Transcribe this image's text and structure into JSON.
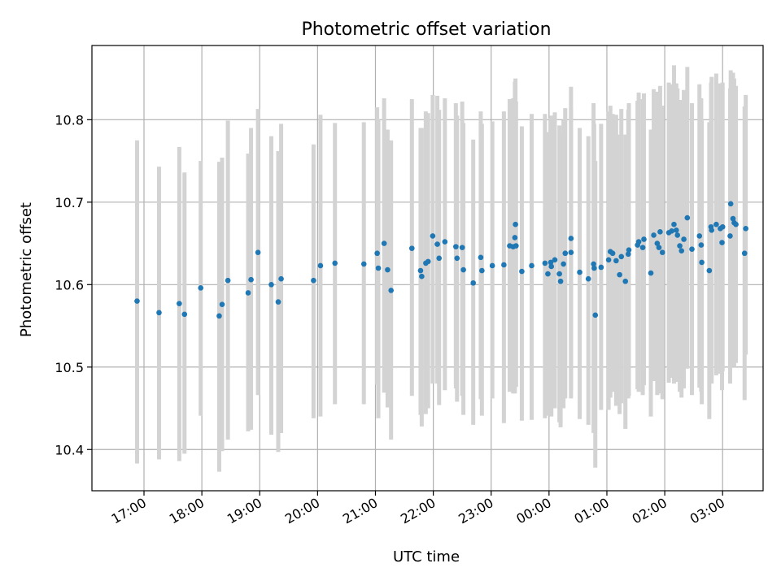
{
  "chart_data": {
    "type": "scatter",
    "title": "Photometric offset variation",
    "xlabel": "UTC time",
    "ylabel": "Photometric offset",
    "x_unit": "hours (UTC, continuous past midnight)",
    "xlim": [
      16.1,
      27.7
    ],
    "ylim": [
      10.35,
      10.89
    ],
    "x_ticks": [
      {
        "value": 17,
        "label": "17:00"
      },
      {
        "value": 18,
        "label": "18:00"
      },
      {
        "value": 19,
        "label": "19:00"
      },
      {
        "value": 20,
        "label": "20:00"
      },
      {
        "value": 21,
        "label": "21:00"
      },
      {
        "value": 22,
        "label": "22:00"
      },
      {
        "value": 23,
        "label": "23:00"
      },
      {
        "value": 24,
        "label": "00:00"
      },
      {
        "value": 25,
        "label": "01:00"
      },
      {
        "value": 26,
        "label": "02:00"
      },
      {
        "value": 27,
        "label": "03:00"
      }
    ],
    "y_ticks": [
      {
        "value": 10.4,
        "label": "10.4"
      },
      {
        "value": 10.5,
        "label": "10.5"
      },
      {
        "value": 10.6,
        "label": "10.6"
      },
      {
        "value": 10.7,
        "label": "10.7"
      },
      {
        "value": 10.8,
        "label": "10.8"
      }
    ],
    "grid": true,
    "point_color": "#1f77b4",
    "errorbar_color": "#d3d3d3",
    "points": [
      [
        16.88,
        10.58,
        10.383,
        10.775
      ],
      [
        17.26,
        10.566,
        10.388,
        10.743
      ],
      [
        17.61,
        10.577,
        10.386,
        10.767
      ],
      [
        17.7,
        10.564,
        10.395,
        10.736
      ],
      [
        17.98,
        10.596,
        10.441,
        10.75
      ],
      [
        18.3,
        10.562,
        10.373,
        10.749
      ],
      [
        18.35,
        10.576,
        10.398,
        10.754
      ],
      [
        18.45,
        10.605,
        10.412,
        10.799
      ],
      [
        18.8,
        10.59,
        10.422,
        10.759
      ],
      [
        18.85,
        10.606,
        10.424,
        10.79
      ],
      [
        18.97,
        10.639,
        10.466,
        10.813
      ],
      [
        19.2,
        10.6,
        10.418,
        10.78
      ],
      [
        19.32,
        10.579,
        10.397,
        10.762
      ],
      [
        19.37,
        10.607,
        10.42,
        10.795
      ],
      [
        19.93,
        10.605,
        10.438,
        10.77
      ],
      [
        20.05,
        10.623,
        10.44,
        10.806
      ],
      [
        20.3,
        10.626,
        10.455,
        10.796
      ],
      [
        20.8,
        10.625,
        10.455,
        10.797
      ],
      [
        21.03,
        10.638,
        10.479,
        10.815
      ],
      [
        21.05,
        10.62,
        10.438,
        10.8
      ],
      [
        21.15,
        10.65,
        10.469,
        10.826
      ],
      [
        21.21,
        10.618,
        10.451,
        10.788
      ],
      [
        21.27,
        10.593,
        10.412,
        10.775
      ],
      [
        21.63,
        10.644,
        10.465,
        10.825
      ],
      [
        21.78,
        10.617,
        10.442,
        10.79
      ],
      [
        21.8,
        10.61,
        10.428,
        10.79
      ],
      [
        21.87,
        10.626,
        10.443,
        10.81
      ],
      [
        21.91,
        10.628,
        10.45,
        10.808
      ],
      [
        21.99,
        10.659,
        10.48,
        10.83
      ],
      [
        22.07,
        10.649,
        10.48,
        10.829
      ],
      [
        22.1,
        10.632,
        10.454,
        10.812
      ],
      [
        22.2,
        10.652,
        10.472,
        10.826
      ],
      [
        22.39,
        10.646,
        10.474,
        10.82
      ],
      [
        22.41,
        10.632,
        10.458,
        10.805
      ],
      [
        22.5,
        10.645,
        10.465,
        10.822
      ],
      [
        22.52,
        10.618,
        10.442,
        10.796
      ],
      [
        22.69,
        10.602,
        10.43,
        10.776
      ],
      [
        22.82,
        10.633,
        10.461,
        10.81
      ],
      [
        22.84,
        10.617,
        10.441,
        10.795
      ],
      [
        23.02,
        10.623,
        10.462,
        10.798
      ],
      [
        23.22,
        10.624,
        10.432,
        10.81
      ],
      [
        23.32,
        10.647,
        10.47,
        10.825
      ],
      [
        23.38,
        10.646,
        10.468,
        10.826
      ],
      [
        23.41,
        10.657,
        10.468,
        10.846
      ],
      [
        23.42,
        10.673,
        10.493,
        10.85
      ],
      [
        23.43,
        10.647,
        10.476,
        10.822
      ],
      [
        23.53,
        10.616,
        10.435,
        10.792
      ],
      [
        23.7,
        10.623,
        10.436,
        10.807
      ],
      [
        23.93,
        10.626,
        10.438,
        10.807
      ],
      [
        23.98,
        10.613,
        10.441,
        10.785
      ],
      [
        24.03,
        10.627,
        10.444,
        10.802
      ],
      [
        24.04,
        10.622,
        10.44,
        10.805
      ],
      [
        24.1,
        10.63,
        10.45,
        10.809
      ],
      [
        24.18,
        10.613,
        10.433,
        10.793
      ],
      [
        24.2,
        10.604,
        10.427,
        10.782
      ],
      [
        24.25,
        10.625,
        10.45,
        10.8
      ],
      [
        24.28,
        10.638,
        10.462,
        10.814
      ],
      [
        24.38,
        10.656,
        10.472,
        10.84
      ],
      [
        24.38,
        10.639,
        10.462,
        10.815
      ],
      [
        24.53,
        10.615,
        10.437,
        10.79
      ],
      [
        24.68,
        10.607,
        10.43,
        10.78
      ],
      [
        24.77,
        10.625,
        10.42,
        10.82
      ],
      [
        24.78,
        10.62,
        10.445,
        10.795
      ],
      [
        24.8,
        10.563,
        10.378,
        10.75
      ],
      [
        24.9,
        10.621,
        10.448,
        10.795
      ],
      [
        25.03,
        10.63,
        10.448,
        10.81
      ],
      [
        25.06,
        10.64,
        10.463,
        10.817
      ],
      [
        25.1,
        10.638,
        10.47,
        10.807
      ],
      [
        25.16,
        10.629,
        10.453,
        10.806
      ],
      [
        25.22,
        10.612,
        10.443,
        10.782
      ],
      [
        25.25,
        10.634,
        10.456,
        10.813
      ],
      [
        25.32,
        10.604,
        10.425,
        10.782
      ],
      [
        25.37,
        10.637,
        10.462,
        10.812
      ],
      [
        25.38,
        10.642,
        10.465,
        10.82
      ],
      [
        25.53,
        10.648,
        10.473,
        10.823
      ],
      [
        25.55,
        10.652,
        10.47,
        10.833
      ],
      [
        25.62,
        10.645,
        10.466,
        10.825
      ],
      [
        25.64,
        10.655,
        10.478,
        10.832
      ],
      [
        25.76,
        10.614,
        10.44,
        10.788
      ],
      [
        25.81,
        10.66,
        10.483,
        10.837
      ],
      [
        25.87,
        10.65,
        10.466,
        10.834
      ],
      [
        25.9,
        10.645,
        10.468,
        10.822
      ],
      [
        25.92,
        10.664,
        10.487,
        10.841
      ],
      [
        25.96,
        10.639,
        10.461,
        10.817
      ],
      [
        26.07,
        10.663,
        10.481,
        10.845
      ],
      [
        26.12,
        10.665,
        10.487,
        10.843
      ],
      [
        26.16,
        10.673,
        10.48,
        10.866
      ],
      [
        26.2,
        10.666,
        10.488,
        10.844
      ],
      [
        26.22,
        10.66,
        10.482,
        10.838
      ],
      [
        26.26,
        10.647,
        10.47,
        10.824
      ],
      [
        26.29,
        10.641,
        10.463,
        10.819
      ],
      [
        26.33,
        10.655,
        10.474,
        10.836
      ],
      [
        26.39,
        10.681,
        10.498,
        10.864
      ],
      [
        26.47,
        10.643,
        10.466,
        10.82
      ],
      [
        26.6,
        10.659,
        10.475,
        10.843
      ],
      [
        26.63,
        10.648,
        10.47,
        10.826
      ],
      [
        26.64,
        10.627,
        10.455,
        10.799
      ],
      [
        26.77,
        10.617,
        10.437,
        10.797
      ],
      [
        26.8,
        10.67,
        10.495,
        10.845
      ],
      [
        26.81,
        10.666,
        10.48,
        10.852
      ],
      [
        26.89,
        10.673,
        10.49,
        10.856
      ],
      [
        26.96,
        10.668,
        10.492,
        10.844
      ],
      [
        26.99,
        10.651,
        10.472,
        10.83
      ],
      [
        27.0,
        10.67,
        10.495,
        10.845
      ],
      [
        27.13,
        10.659,
        10.48,
        10.838
      ],
      [
        27.14,
        10.698,
        10.516,
        10.86
      ],
      [
        27.18,
        10.68,
        10.503,
        10.857
      ],
      [
        27.2,
        10.675,
        10.5,
        10.85
      ],
      [
        27.23,
        10.673,
        10.505,
        10.841
      ],
      [
        27.38,
        10.638,
        10.46,
        10.816
      ],
      [
        27.4,
        10.668,
        10.515,
        10.83
      ]
    ]
  }
}
